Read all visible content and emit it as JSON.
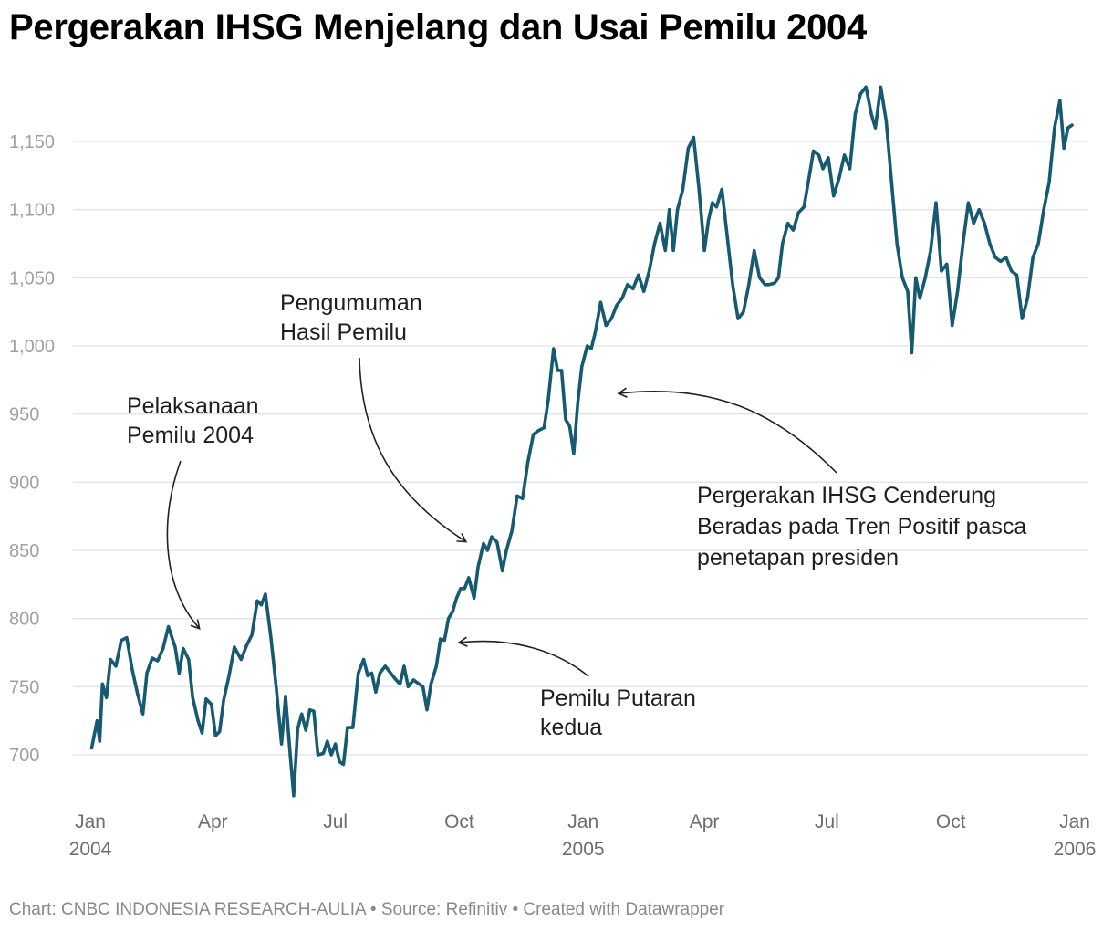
{
  "title": "Pergerakan IHSG Menjelang dan Usai Pemilu 2004",
  "footer": "Chart: CNBC INDONESIA RESEARCH-AULIA • Source: Refinitiv • Created with Datawrapper",
  "colors": {
    "line": "#165a72",
    "grid": "#e3e3e3",
    "tick": "#a0a0a0"
  },
  "chart_data": {
    "type": "line",
    "title": "Pergerakan IHSG Menjelang dan Usai Pemilu 2004",
    "xlabel": "",
    "ylabel": "",
    "grid": true,
    "ylim": [
      665,
      1195
    ],
    "xlim": [
      "2004-01-01",
      "2006-01-01"
    ],
    "yticks": [
      {
        "value": 700,
        "label": "700"
      },
      {
        "value": 750,
        "label": "750"
      },
      {
        "value": 800,
        "label": "800"
      },
      {
        "value": 850,
        "label": "850"
      },
      {
        "value": 900,
        "label": "900"
      },
      {
        "value": 950,
        "label": "950"
      },
      {
        "value": 1000,
        "label": "1,000"
      },
      {
        "value": 1050,
        "label": "1,050"
      },
      {
        "value": 1100,
        "label": "1,100"
      },
      {
        "value": 1150,
        "label": "1,150"
      }
    ],
    "xticks": [
      {
        "date": "2004-01-01",
        "label": "Jan",
        "year": "2004"
      },
      {
        "date": "2004-04-01",
        "label": "Apr",
        "year": ""
      },
      {
        "date": "2004-07-01",
        "label": "Jul",
        "year": ""
      },
      {
        "date": "2004-10-01",
        "label": "Oct",
        "year": ""
      },
      {
        "date": "2005-01-01",
        "label": "Jan",
        "year": "2005"
      },
      {
        "date": "2005-04-01",
        "label": "Apr",
        "year": ""
      },
      {
        "date": "2005-07-01",
        "label": "Jul",
        "year": ""
      },
      {
        "date": "2005-10-01",
        "label": "Oct",
        "year": ""
      },
      {
        "date": "2006-01-01",
        "label": "Jan",
        "year": "2006"
      }
    ],
    "series": [
      {
        "name": "IHSG",
        "points": [
          [
            "2004-01-02",
            705
          ],
          [
            "2004-01-06",
            725
          ],
          [
            "2004-01-08",
            710
          ],
          [
            "2004-01-10",
            752
          ],
          [
            "2004-01-13",
            742
          ],
          [
            "2004-01-16",
            770
          ],
          [
            "2004-01-20",
            765
          ],
          [
            "2004-01-24",
            784
          ],
          [
            "2004-01-28",
            786
          ],
          [
            "2004-02-01",
            763
          ],
          [
            "2004-02-05",
            745
          ],
          [
            "2004-02-09",
            730
          ],
          [
            "2004-02-12",
            760
          ],
          [
            "2004-02-16",
            771
          ],
          [
            "2004-02-20",
            769
          ],
          [
            "2004-02-24",
            778
          ],
          [
            "2004-02-28",
            794
          ],
          [
            "2004-03-04",
            779
          ],
          [
            "2004-03-07",
            760
          ],
          [
            "2004-03-10",
            778
          ],
          [
            "2004-03-14",
            770
          ],
          [
            "2004-03-17",
            742
          ],
          [
            "2004-03-21",
            725
          ],
          [
            "2004-03-24",
            716
          ],
          [
            "2004-03-27",
            741
          ],
          [
            "2004-03-31",
            737
          ],
          [
            "2004-04-03",
            714
          ],
          [
            "2004-04-06",
            717
          ],
          [
            "2004-04-09",
            740
          ],
          [
            "2004-04-13",
            758
          ],
          [
            "2004-04-17",
            779
          ],
          [
            "2004-04-22",
            770
          ],
          [
            "2004-04-26",
            780
          ],
          [
            "2004-04-30",
            788
          ],
          [
            "2004-05-04",
            813
          ],
          [
            "2004-05-07",
            810
          ],
          [
            "2004-05-10",
            818
          ],
          [
            "2004-05-14",
            787
          ],
          [
            "2004-05-18",
            750
          ],
          [
            "2004-05-22",
            708
          ],
          [
            "2004-05-25",
            743
          ],
          [
            "2004-05-28",
            705
          ],
          [
            "2004-05-31",
            670
          ],
          [
            "2004-06-03",
            719
          ],
          [
            "2004-06-06",
            730
          ],
          [
            "2004-06-09",
            718
          ],
          [
            "2004-06-12",
            733
          ],
          [
            "2004-06-15",
            732
          ],
          [
            "2004-06-18",
            700
          ],
          [
            "2004-06-22",
            701
          ],
          [
            "2004-06-25",
            710
          ],
          [
            "2004-06-28",
            700
          ],
          [
            "2004-07-01",
            708
          ],
          [
            "2004-07-04",
            695
          ],
          [
            "2004-07-07",
            693
          ],
          [
            "2004-07-10",
            720
          ],
          [
            "2004-07-14",
            720
          ],
          [
            "2004-07-18",
            760
          ],
          [
            "2004-07-22",
            770
          ],
          [
            "2004-07-25",
            758
          ],
          [
            "2004-07-28",
            760
          ],
          [
            "2004-07-31",
            746
          ],
          [
            "2004-08-03",
            760
          ],
          [
            "2004-08-07",
            765
          ],
          [
            "2004-08-11",
            760
          ],
          [
            "2004-08-15",
            755
          ],
          [
            "2004-08-18",
            752
          ],
          [
            "2004-08-21",
            765
          ],
          [
            "2004-08-24",
            750
          ],
          [
            "2004-08-28",
            755
          ],
          [
            "2004-09-01",
            752
          ],
          [
            "2004-09-04",
            750
          ],
          [
            "2004-09-07",
            733
          ],
          [
            "2004-09-10",
            752
          ],
          [
            "2004-09-14",
            765
          ],
          [
            "2004-09-17",
            785
          ],
          [
            "2004-09-20",
            784
          ],
          [
            "2004-09-23",
            800
          ],
          [
            "2004-09-26",
            805
          ],
          [
            "2004-09-29",
            815
          ],
          [
            "2004-10-02",
            822
          ],
          [
            "2004-10-05",
            822
          ],
          [
            "2004-10-08",
            830
          ],
          [
            "2004-10-12",
            815
          ],
          [
            "2004-10-15",
            838
          ],
          [
            "2004-10-19",
            855
          ],
          [
            "2004-10-22",
            850
          ],
          [
            "2004-10-25",
            860
          ],
          [
            "2004-10-29",
            856
          ],
          [
            "2004-11-02",
            835
          ],
          [
            "2004-11-05",
            850
          ],
          [
            "2004-11-09",
            864
          ],
          [
            "2004-11-13",
            890
          ],
          [
            "2004-11-17",
            888
          ],
          [
            "2004-11-21",
            915
          ],
          [
            "2004-11-25",
            935
          ],
          [
            "2004-11-29",
            938
          ],
          [
            "2004-12-03",
            940
          ],
          [
            "2004-12-06",
            960
          ],
          [
            "2004-12-10",
            998
          ],
          [
            "2004-12-13",
            982
          ],
          [
            "2004-12-16",
            982
          ],
          [
            "2004-12-19",
            946
          ],
          [
            "2004-12-22",
            941
          ],
          [
            "2004-12-25",
            921
          ],
          [
            "2004-12-28",
            958
          ],
          [
            "2004-12-31",
            985
          ],
          [
            "2005-01-04",
            1000
          ],
          [
            "2005-01-07",
            998
          ],
          [
            "2005-01-10",
            1010
          ],
          [
            "2005-01-14",
            1032
          ],
          [
            "2005-01-18",
            1015
          ],
          [
            "2005-01-22",
            1020
          ],
          [
            "2005-01-26",
            1030
          ],
          [
            "2005-01-30",
            1035
          ],
          [
            "2005-02-03",
            1045
          ],
          [
            "2005-02-07",
            1042
          ],
          [
            "2005-02-11",
            1052
          ],
          [
            "2005-02-15",
            1040
          ],
          [
            "2005-02-19",
            1055
          ],
          [
            "2005-02-23",
            1075
          ],
          [
            "2005-02-27",
            1090
          ],
          [
            "2005-03-03",
            1070
          ],
          [
            "2005-03-06",
            1100
          ],
          [
            "2005-03-09",
            1070
          ],
          [
            "2005-03-12",
            1100
          ],
          [
            "2005-03-16",
            1115
          ],
          [
            "2005-03-20",
            1145
          ],
          [
            "2005-03-24",
            1153
          ],
          [
            "2005-03-28",
            1115
          ],
          [
            "2005-04-01",
            1070
          ],
          [
            "2005-04-04",
            1092
          ],
          [
            "2005-04-07",
            1105
          ],
          [
            "2005-04-10",
            1102
          ],
          [
            "2005-04-14",
            1115
          ],
          [
            "2005-04-18",
            1080
          ],
          [
            "2005-04-22",
            1045
          ],
          [
            "2005-04-26",
            1020
          ],
          [
            "2005-04-30",
            1025
          ],
          [
            "2005-05-04",
            1045
          ],
          [
            "2005-05-08",
            1070
          ],
          [
            "2005-05-12",
            1050
          ],
          [
            "2005-05-16",
            1045
          ],
          [
            "2005-05-19",
            1045
          ],
          [
            "2005-05-23",
            1046
          ],
          [
            "2005-05-26",
            1050
          ],
          [
            "2005-05-29",
            1075
          ],
          [
            "2005-06-02",
            1090
          ],
          [
            "2005-06-06",
            1085
          ],
          [
            "2005-06-10",
            1098
          ],
          [
            "2005-06-14",
            1102
          ],
          [
            "2005-06-18",
            1125
          ],
          [
            "2005-06-21",
            1143
          ],
          [
            "2005-06-25",
            1140
          ],
          [
            "2005-06-28",
            1130
          ],
          [
            "2005-07-02",
            1138
          ],
          [
            "2005-07-06",
            1110
          ],
          [
            "2005-07-10",
            1123
          ],
          [
            "2005-07-14",
            1140
          ],
          [
            "2005-07-18",
            1130
          ],
          [
            "2005-07-22",
            1170
          ],
          [
            "2005-07-26",
            1185
          ],
          [
            "2005-07-30",
            1190
          ],
          [
            "2005-08-03",
            1170
          ],
          [
            "2005-08-06",
            1160
          ],
          [
            "2005-08-10",
            1190
          ],
          [
            "2005-08-14",
            1165
          ],
          [
            "2005-08-18",
            1120
          ],
          [
            "2005-08-22",
            1075
          ],
          [
            "2005-08-26",
            1050
          ],
          [
            "2005-08-30",
            1040
          ],
          [
            "2005-09-02",
            995
          ],
          [
            "2005-09-05",
            1050
          ],
          [
            "2005-09-08",
            1035
          ],
          [
            "2005-09-12",
            1050
          ],
          [
            "2005-09-16",
            1070
          ],
          [
            "2005-09-20",
            1105
          ],
          [
            "2005-09-24",
            1055
          ],
          [
            "2005-09-28",
            1060
          ],
          [
            "2005-10-02",
            1015
          ],
          [
            "2005-10-06",
            1040
          ],
          [
            "2005-10-10",
            1075
          ],
          [
            "2005-10-14",
            1105
          ],
          [
            "2005-10-18",
            1090
          ],
          [
            "2005-10-22",
            1100
          ],
          [
            "2005-10-26",
            1090
          ],
          [
            "2005-10-30",
            1075
          ],
          [
            "2005-11-03",
            1065
          ],
          [
            "2005-11-07",
            1062
          ],
          [
            "2005-11-11",
            1065
          ],
          [
            "2005-11-15",
            1055
          ],
          [
            "2005-11-19",
            1052
          ],
          [
            "2005-11-23",
            1020
          ],
          [
            "2005-11-27",
            1035
          ],
          [
            "2005-12-01",
            1065
          ],
          [
            "2005-12-05",
            1075
          ],
          [
            "2005-12-09",
            1100
          ],
          [
            "2005-12-13",
            1120
          ],
          [
            "2005-12-17",
            1160
          ],
          [
            "2005-12-21",
            1180
          ],
          [
            "2005-12-24",
            1145
          ],
          [
            "2005-12-27",
            1160
          ],
          [
            "2005-12-30",
            1162
          ]
        ]
      }
    ],
    "annotations": [
      {
        "lines": [
          "Pelaksanaan",
          "Pemilu 2004"
        ],
        "target_date": "2004-04-05",
        "target_value": 790
      },
      {
        "lines": [
          "Pengumuman",
          "Hasil Pemilu"
        ],
        "target_date": "2004-10-20",
        "target_value": 860
      },
      {
        "lines": [
          "Pemilu Putaran",
          "kedua"
        ],
        "target_date": "2004-10-20",
        "target_value": 785
      },
      {
        "lines": [
          "Pergerakan IHSG Cenderung",
          "Beradas pada Tren Positif pasca",
          "penetapan presiden"
        ],
        "target_date": "2005-01-27",
        "target_value": 965
      }
    ]
  }
}
